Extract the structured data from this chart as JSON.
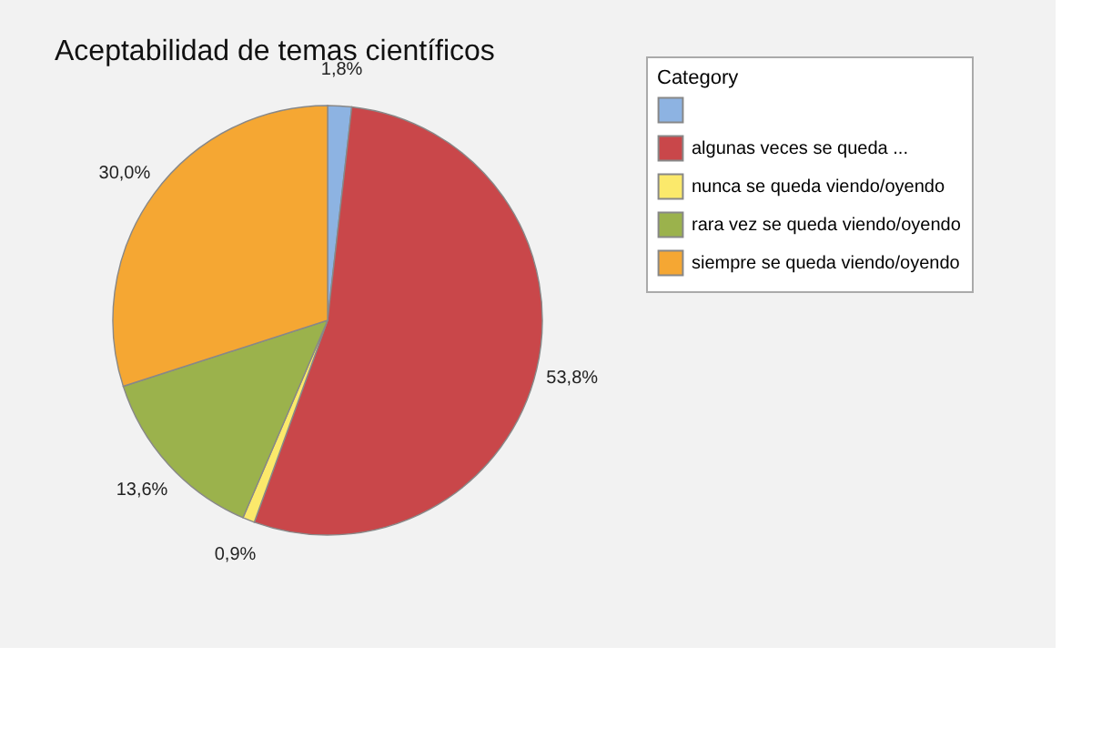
{
  "chart_data": {
    "type": "pie",
    "title": "Aceptabilidad de temas científicos",
    "legend_title": "Category",
    "categories": [
      null,
      "algunas veces se queda ...",
      "nunca se queda viendo/oyendo",
      "rara vez se queda viendo/oyendo",
      "siempre se queda viendo/oyendo"
    ],
    "values": [
      1.8,
      53.8,
      0.9,
      13.6,
      30.0
    ],
    "value_labels": [
      "1,8%",
      "53,8%",
      "0,9%",
      "13,6%",
      "30,0%"
    ],
    "colors": [
      "#8db3e2",
      "#c9474a",
      "#fbe96b",
      "#9bb24c",
      "#f5a733"
    ],
    "legend": "top right"
  }
}
